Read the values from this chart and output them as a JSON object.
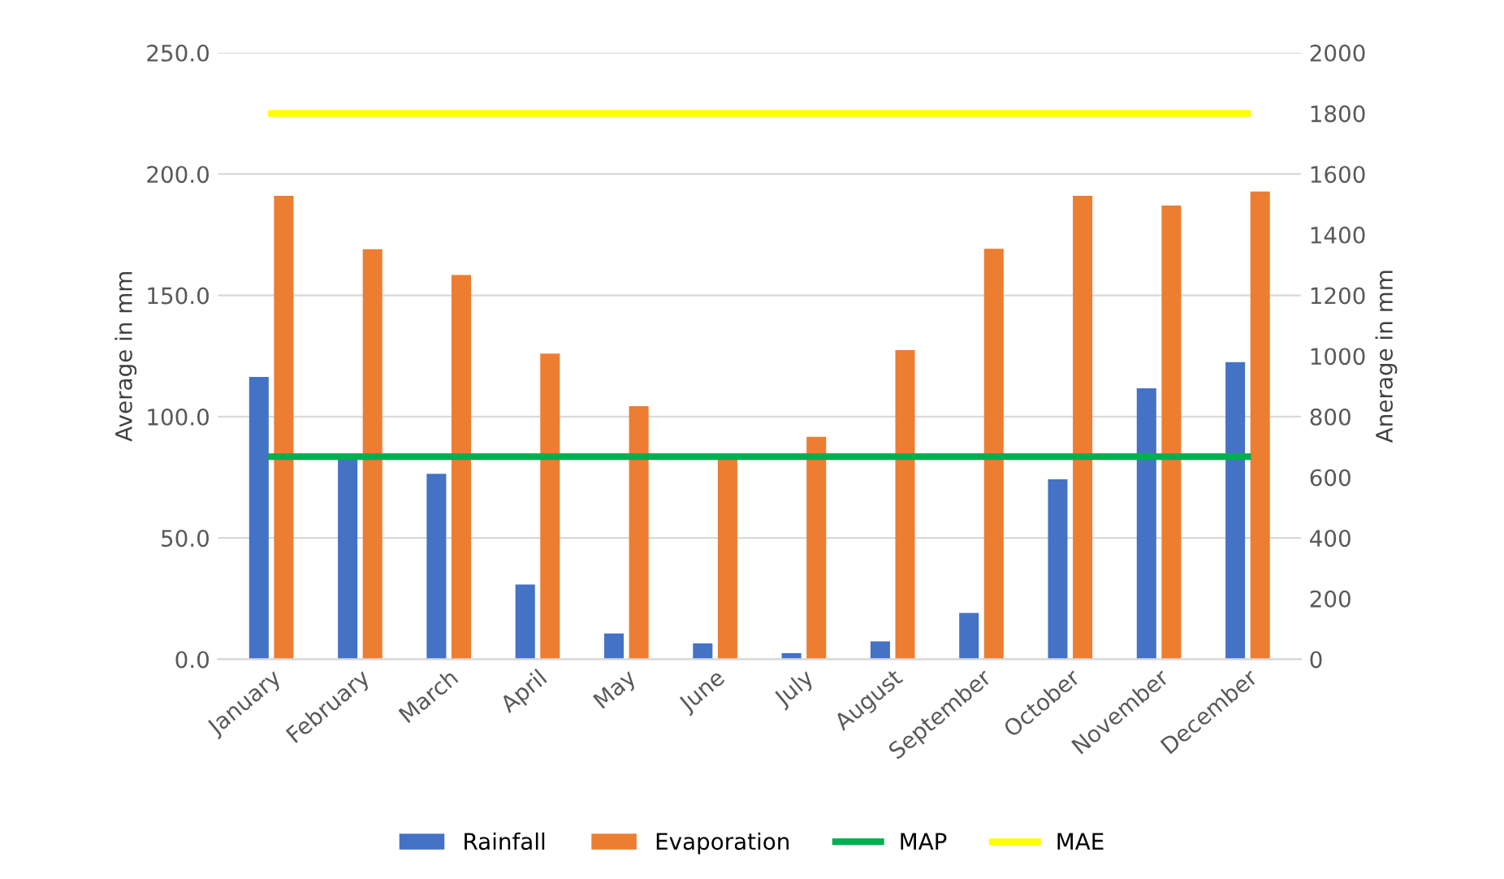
{
  "chart_data": {
    "type": "bar",
    "ylabel": "Average in mm",
    "y2label": "Anerage in mm",
    "categories": [
      "January",
      "February",
      "March",
      "April",
      "May",
      "June",
      "July",
      "August",
      "September",
      "October",
      "November",
      "December"
    ],
    "series": [
      {
        "name": "Rainfall",
        "color": "#4472c4",
        "values": [
          116.4,
          83,
          76.4,
          30.8,
          10.6,
          6.5,
          2.5,
          7.4,
          19.1,
          74.2,
          111.7,
          122.5
        ]
      },
      {
        "name": "Evaporation",
        "color": "#ed7d31",
        "values": [
          191,
          169,
          158.4,
          126,
          104.3,
          83.6,
          91.7,
          127.4,
          169.2,
          191,
          187,
          192.8
        ]
      },
      {
        "name": "MAP",
        "type": "line",
        "axis": "y2",
        "color": "#00b050",
        "values": [
          668,
          668,
          668,
          668,
          668,
          668,
          668,
          668,
          668,
          668,
          668,
          668
        ]
      },
      {
        "name": "MAE",
        "type": "line",
        "axis": "y2",
        "color": "#ffff00",
        "values": [
          1800,
          1800,
          1800,
          1800,
          1800,
          1800,
          1800,
          1800,
          1800,
          1800,
          1800,
          1800
        ]
      }
    ],
    "ylim": [
      0,
      250
    ],
    "yticks": [
      {
        "value": 0,
        "label": "0.0"
      },
      {
        "value": 50,
        "label": "50.0"
      },
      {
        "value": 100,
        "label": "100.0"
      },
      {
        "value": 150,
        "label": "150.0"
      },
      {
        "value": 200,
        "label": "200.0"
      },
      {
        "value": 250,
        "label": "250.0"
      }
    ],
    "y2lim": [
      0,
      2000
    ],
    "y2ticks": [
      0,
      200,
      400,
      600,
      800,
      1000,
      1200,
      1400,
      1600,
      1800,
      2000
    ],
    "grid": "y",
    "legend": "bottom"
  }
}
